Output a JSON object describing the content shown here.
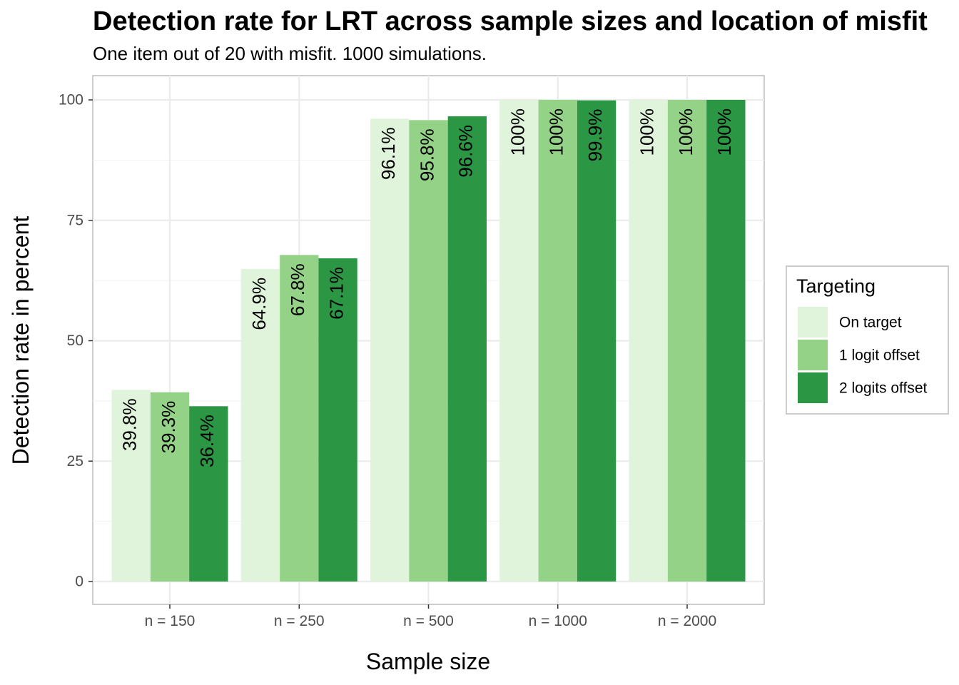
{
  "chart_data": {
    "type": "bar",
    "title": "Detection rate for LRT across sample sizes and location of misfit",
    "subtitle": "One item out of 20 with misfit. 1000 simulations.",
    "xlabel": "Sample size",
    "ylabel": "Detection rate in percent",
    "categories": [
      "n = 150",
      "n = 250",
      "n = 500",
      "n = 1000",
      "n = 2000"
    ],
    "ylim": [
      0,
      100
    ],
    "y_ticks": [
      0,
      25,
      50,
      75,
      100
    ],
    "grid": true,
    "legend_title": "Targeting",
    "legend_position": "right",
    "series": [
      {
        "name": "On target",
        "color": "#e0f3db",
        "values": [
          39.8,
          64.9,
          96.1,
          100,
          100
        ],
        "labels": [
          "39.8%",
          "64.9%",
          "96.1%",
          "100%",
          "100%"
        ]
      },
      {
        "name": "1 logit offset",
        "color": "#94d387",
        "values": [
          39.3,
          67.8,
          95.8,
          100,
          100
        ],
        "labels": [
          "39.3%",
          "67.8%",
          "95.8%",
          "100%",
          "100%"
        ]
      },
      {
        "name": "2 logits offset",
        "color": "#2b9644",
        "values": [
          36.4,
          67.1,
          96.6,
          99.9,
          100
        ],
        "labels": [
          "36.4%",
          "67.1%",
          "96.6%",
          "99.9%",
          "100%"
        ]
      }
    ]
  }
}
